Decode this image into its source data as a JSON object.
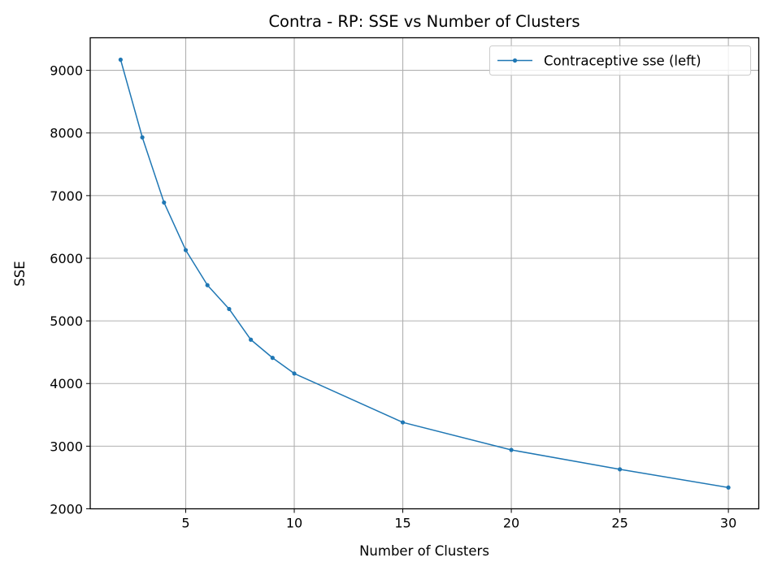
{
  "chart_data": {
    "type": "line",
    "title": "Contra - RP: SSE vs Number of Clusters",
    "xlabel": "Number of Clusters",
    "ylabel": "SSE",
    "xlim": [
      0.6,
      31.4
    ],
    "ylim": [
      2000,
      9520
    ],
    "xticks": [
      5,
      10,
      15,
      20,
      25,
      30
    ],
    "yticks": [
      2000,
      3000,
      4000,
      5000,
      6000,
      7000,
      8000,
      9000
    ],
    "grid": true,
    "legend_position": "upper right",
    "colors": {
      "series": "#1f77b4",
      "grid": "#b0b0b0",
      "axes": "#000000"
    },
    "series": [
      {
        "name": "Contraceptive sse (left)",
        "x": [
          2,
          3,
          4,
          5,
          6,
          7,
          8,
          9,
          10,
          15,
          20,
          25,
          30
        ],
        "values": [
          9170,
          7930,
          6890,
          6130,
          5570,
          5190,
          4700,
          4410,
          4160,
          3380,
          2940,
          2630,
          2340
        ]
      }
    ]
  }
}
